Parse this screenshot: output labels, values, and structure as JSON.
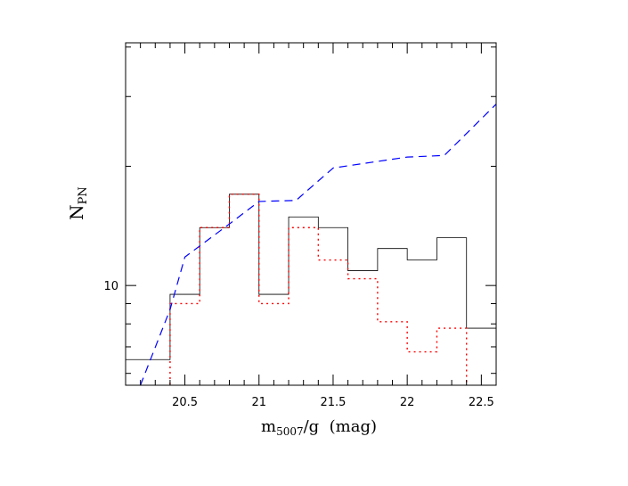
{
  "chart_data": {
    "type": "line",
    "x_axis": {
      "label_main": "m",
      "label_sub": "5007",
      "label_rest": "/g  (mag)",
      "range": [
        20.1,
        22.6
      ],
      "tick_labels": [
        "20.5",
        "21",
        "21.5",
        "22",
        "22.5"
      ],
      "tick_values": [
        20.5,
        21,
        21.5,
        22,
        22.5
      ]
    },
    "y_axis": {
      "label_main": "N",
      "label_sub": "PN",
      "scale": "log",
      "range": [
        5.6,
        41
      ],
      "tick_labels": [
        "10"
      ],
      "tick_values": [
        10
      ]
    },
    "series": [
      {
        "style": "solid-step",
        "color": "#000000",
        "edges": [
          20.1,
          20.4,
          20.6,
          20.8,
          21.0,
          21.2,
          21.4,
          21.6,
          21.8,
          22.0,
          22.2,
          22.4,
          22.6
        ],
        "values": [
          6.5,
          9.5,
          14,
          17,
          9.5,
          14.9,
          14,
          10.9,
          12.4,
          11.6,
          13.2,
          7.8
        ]
      },
      {
        "style": "dotted-step",
        "color": "#ff0000",
        "edges": [
          20.1,
          20.4,
          20.6,
          20.8,
          21.0,
          21.2,
          21.4,
          21.6,
          21.8,
          22.0,
          22.2,
          22.4,
          22.6
        ],
        "values": [
          null,
          9.0,
          14,
          17,
          9.0,
          14.0,
          11.6,
          10.4,
          8.1,
          6.8,
          7.8,
          null
        ]
      },
      {
        "style": "dashed-line",
        "color": "#0000ff",
        "x": [
          20.2,
          20.4,
          20.5,
          20.8,
          21.0,
          21.25,
          21.5,
          22.0,
          22.25,
          22.6
        ],
        "y": [
          5.6,
          8.7,
          11.8,
          14.3,
          16.3,
          16.4,
          19.8,
          21.1,
          21.3,
          28.7
        ]
      }
    ]
  }
}
